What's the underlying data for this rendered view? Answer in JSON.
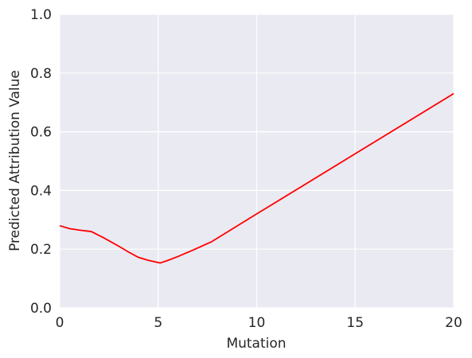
{
  "chart_data": {
    "type": "line",
    "x_label": "Mutation",
    "y_label": "Predicted Attribution Value",
    "xlim": [
      0,
      20
    ],
    "xticks": [
      0,
      5,
      10,
      15,
      20
    ],
    "ylim": [
      0,
      1
    ],
    "yticks": [
      {
        "value": 0,
        "label": "0.0"
      },
      0.2,
      0.4,
      0.6,
      0.8,
      {
        "value": 1,
        "label": "1.0"
      }
    ],
    "grid": true,
    "x": [
      0,
      0.5,
      1,
      1.6,
      2.2,
      3,
      3.5,
      4,
      4.5,
      5.1,
      5.5,
      6,
      6.7,
      7.7,
      10,
      15,
      20
    ],
    "series": [
      {
        "color": "#ff0000",
        "values": [
          0.28,
          0.27,
          0.265,
          0.26,
          0.24,
          0.21,
          0.19,
          0.172,
          0.162,
          0.153,
          0.162,
          0.175,
          0.195,
          0.225,
          0.32,
          0.525,
          0.73
        ]
      }
    ]
  }
}
